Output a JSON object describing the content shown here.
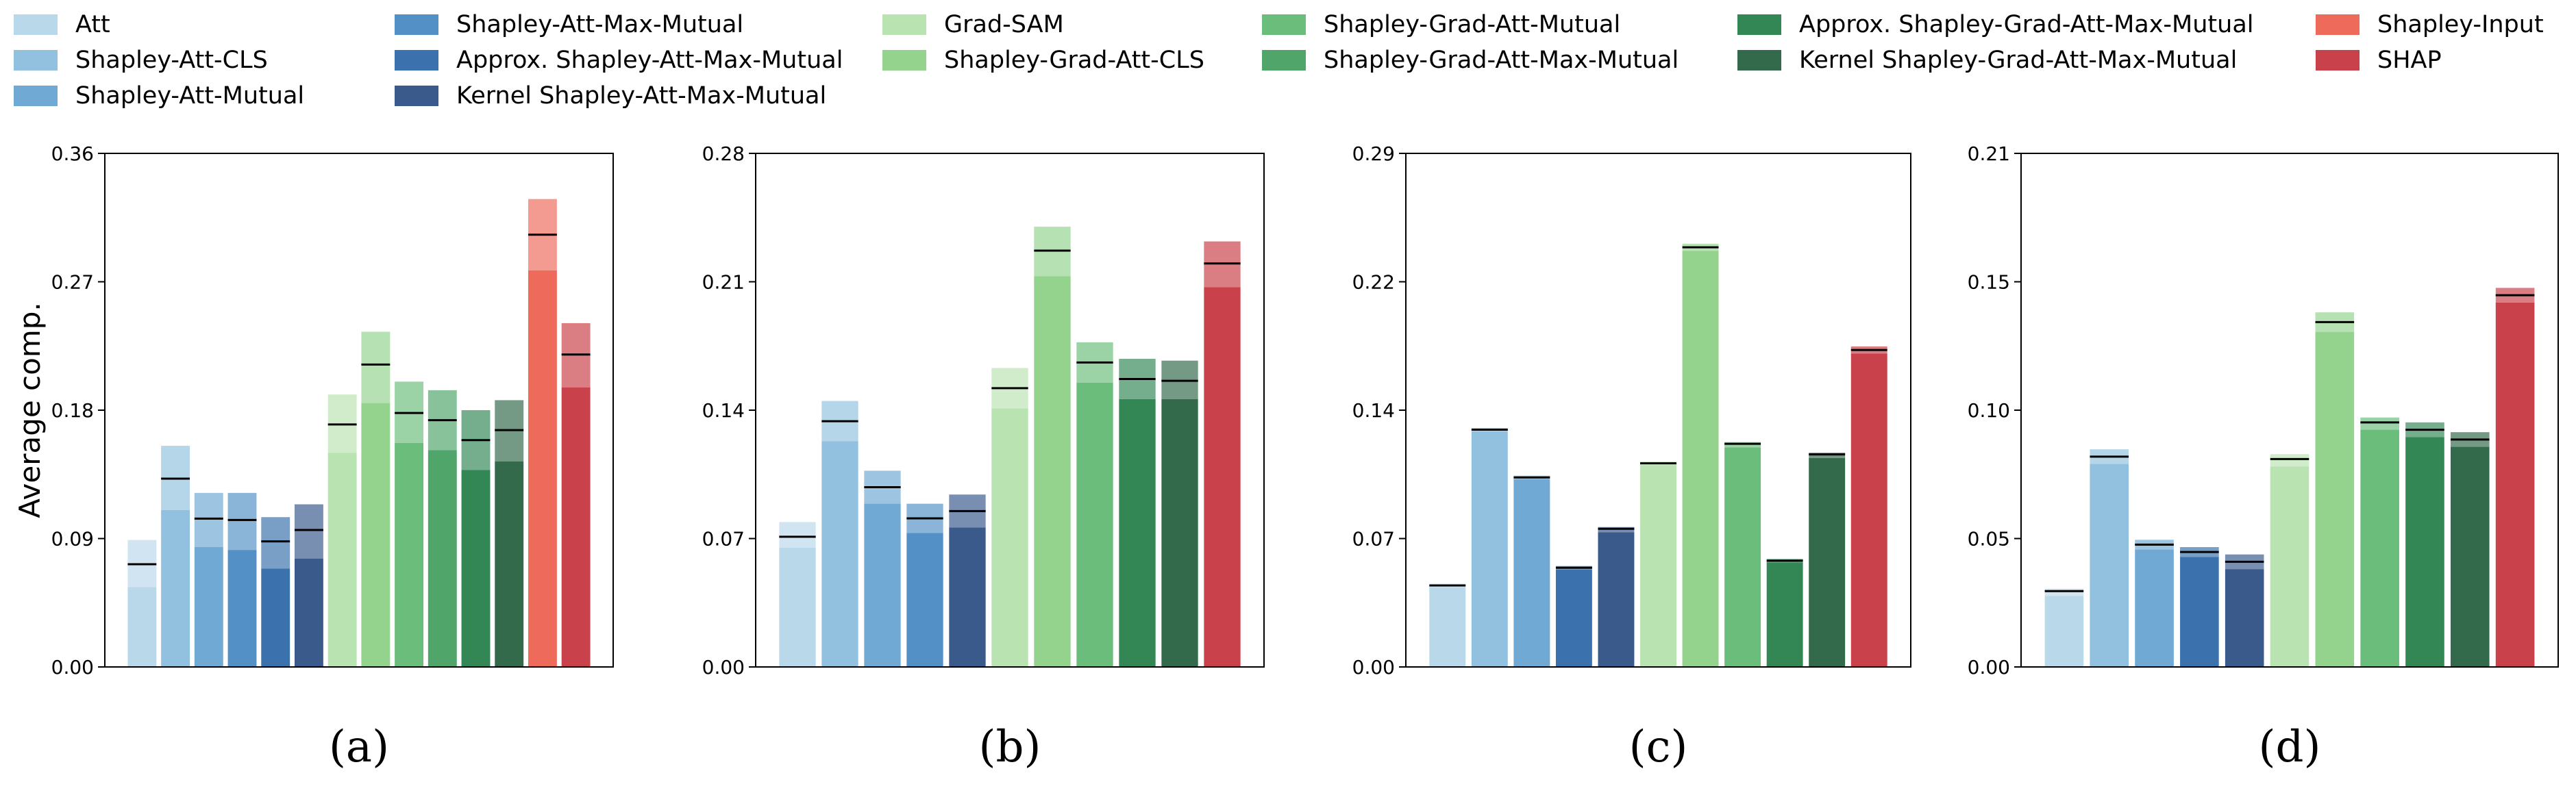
{
  "figure": {
    "ylabel": "Average comp."
  },
  "legend": [
    {
      "label": "Att",
      "color": "#b9d8ea"
    },
    {
      "label": "Shapley-Att-CLS",
      "color": "#92c1df"
    },
    {
      "label": "Shapley-Att-Mutual",
      "color": "#6fa9d4"
    },
    {
      "label": "Shapley-Att-Max-Mutual",
      "color": "#5390c6"
    },
    {
      "label": "Approx. Shapley-Att-Max-Mutual",
      "color": "#3b72ad"
    },
    {
      "label": "Kernel Shapley-Att-Max-Mutual",
      "color": "#3a5a8c"
    },
    {
      "label": "Grad-SAM",
      "color": "#b9e3b1"
    },
    {
      "label": "Shapley-Grad-Att-CLS",
      "color": "#94d38e"
    },
    {
      "label": "Shapley-Grad-Att-Mutual",
      "color": "#6bbd7c"
    },
    {
      "label": "Shapley-Grad-Att-Max-Mutual",
      "color": "#4fa56a"
    },
    {
      "label": "Approx. Shapley-Grad-Att-Max-Mutual",
      "color": "#338755"
    },
    {
      "label": "Kernel Shapley-Grad-Att-Max-Mutual",
      "color": "#326a4b"
    },
    {
      "label": "Shapley-Input",
      "color": "#ee6b5c"
    },
    {
      "label": "SHAP",
      "color": "#c9414a"
    }
  ],
  "chart_data": [
    {
      "type": "bar",
      "panel_label": "(a)",
      "ylim": [
        0,
        0.36
      ],
      "yticks": [
        "0.00",
        "0.09",
        "0.18",
        "0.27",
        "0.36"
      ],
      "series": [
        {
          "name": "Att",
          "low": 0.056,
          "mean": 0.072,
          "high": 0.089
        },
        {
          "name": "Shapley-Att-CLS",
          "low": 0.11,
          "mean": 0.132,
          "high": 0.155
        },
        {
          "name": "Shapley-Att-Mutual",
          "low": 0.084,
          "mean": 0.104,
          "high": 0.122
        },
        {
          "name": "Shapley-Att-Max-Mutual",
          "low": 0.082,
          "mean": 0.103,
          "high": 0.122
        },
        {
          "name": "Approx. Shapley-Att-Max-Mutual",
          "low": 0.069,
          "mean": 0.088,
          "high": 0.105
        },
        {
          "name": "Kernel Shapley-Att-Max-Mutual",
          "low": 0.076,
          "mean": 0.096,
          "high": 0.114
        },
        {
          "name": "Grad-SAM",
          "low": 0.15,
          "mean": 0.17,
          "high": 0.191
        },
        {
          "name": "Shapley-Grad-Att-CLS",
          "low": 0.185,
          "mean": 0.212,
          "high": 0.235
        },
        {
          "name": "Shapley-Grad-Att-Mutual",
          "low": 0.157,
          "mean": 0.178,
          "high": 0.2
        },
        {
          "name": "Shapley-Grad-Att-Max-Mutual",
          "low": 0.152,
          "mean": 0.173,
          "high": 0.194
        },
        {
          "name": "Approx. Shapley-Grad-Att-Max-Mutual",
          "low": 0.138,
          "mean": 0.159,
          "high": 0.18
        },
        {
          "name": "Kernel Shapley-Grad-Att-Max-Mutual",
          "low": 0.144,
          "mean": 0.166,
          "high": 0.187
        },
        {
          "name": "Shapley-Input",
          "low": 0.278,
          "mean": 0.303,
          "high": 0.328
        },
        {
          "name": "SHAP",
          "low": 0.196,
          "mean": 0.219,
          "high": 0.241
        }
      ]
    },
    {
      "type": "bar",
      "panel_label": "(b)",
      "ylim": [
        0,
        0.28
      ],
      "yticks": [
        "0.00",
        "0.07",
        "0.14",
        "0.21",
        "0.28"
      ],
      "series": [
        {
          "name": "Att",
          "low": 0.065,
          "mean": 0.071,
          "high": 0.079
        },
        {
          "name": "Shapley-Att-CLS",
          "low": 0.123,
          "mean": 0.134,
          "high": 0.145
        },
        {
          "name": "Shapley-Att-Mutual",
          "low": 0.089,
          "mean": 0.098,
          "high": 0.107
        },
        {
          "name": "Shapley-Att-Max-Mutual",
          "low": 0.073,
          "mean": 0.081,
          "high": 0.089
        },
        {
          "name": "Kernel Shapley-Att-Max-Mutual",
          "low": 0.076,
          "mean": 0.085,
          "high": 0.094
        },
        {
          "name": "Grad-SAM",
          "low": 0.141,
          "mean": 0.152,
          "high": 0.163
        },
        {
          "name": "Shapley-Grad-Att-CLS",
          "low": 0.213,
          "mean": 0.227,
          "high": 0.24
        },
        {
          "name": "Shapley-Grad-Att-Mutual",
          "low": 0.155,
          "mean": 0.166,
          "high": 0.177
        },
        {
          "name": "Approx. Shapley-Grad-Att-Max-Mutual",
          "low": 0.146,
          "mean": 0.157,
          "high": 0.168
        },
        {
          "name": "Kernel Shapley-Grad-Att-Max-Mutual",
          "low": 0.146,
          "mean": 0.156,
          "high": 0.167
        },
        {
          "name": "SHAP",
          "low": 0.207,
          "mean": 0.22,
          "high": 0.232
        }
      ]
    },
    {
      "type": "bar",
      "panel_label": "(c)",
      "ylim": [
        0,
        0.29
      ],
      "yticks": [
        "0.00",
        "0.07",
        "0.14",
        "0.22",
        "0.29"
      ],
      "series": [
        {
          "name": "Att",
          "low": 0.045,
          "mean": 0.046,
          "high": 0.047
        },
        {
          "name": "Shapley-Att-CLS",
          "low": 0.133,
          "mean": 0.134,
          "high": 0.135
        },
        {
          "name": "Shapley-Att-Mutual",
          "low": 0.106,
          "mean": 0.107,
          "high": 0.108
        },
        {
          "name": "Approx. Shapley-Att-Max-Mutual",
          "low": 0.055,
          "mean": 0.056,
          "high": 0.057
        },
        {
          "name": "Kernel Shapley-Att-Max-Mutual",
          "low": 0.076,
          "mean": 0.078,
          "high": 0.079
        },
        {
          "name": "Grad-SAM",
          "low": 0.114,
          "mean": 0.115,
          "high": 0.116
        },
        {
          "name": "Shapley-Grad-Att-CLS",
          "low": 0.235,
          "mean": 0.237,
          "high": 0.239
        },
        {
          "name": "Shapley-Grad-Att-Mutual",
          "low": 0.124,
          "mean": 0.126,
          "high": 0.127
        },
        {
          "name": "Approx. Shapley-Grad-Att-Max-Mutual",
          "low": 0.059,
          "mean": 0.06,
          "high": 0.061
        },
        {
          "name": "Kernel Shapley-Grad-Att-Max-Mutual",
          "low": 0.118,
          "mean": 0.12,
          "high": 0.121
        },
        {
          "name": "SHAP",
          "low": 0.177,
          "mean": 0.179,
          "high": 0.181
        }
      ]
    },
    {
      "type": "bar",
      "panel_label": "(d)",
      "ylim": [
        0,
        0.21
      ],
      "yticks": [
        "0.00",
        "0.05",
        "0.10",
        "0.15",
        "0.21"
      ],
      "series": [
        {
          "name": "Att",
          "low": 0.029,
          "mean": 0.031,
          "high": 0.032
        },
        {
          "name": "Shapley-Att-CLS",
          "low": 0.083,
          "mean": 0.086,
          "high": 0.089
        },
        {
          "name": "Shapley-Att-Mutual",
          "low": 0.048,
          "mean": 0.05,
          "high": 0.052
        },
        {
          "name": "Approx. Shapley-Att-Max-Mutual",
          "low": 0.045,
          "mean": 0.047,
          "high": 0.049
        },
        {
          "name": "Kernel Shapley-Att-Max-Mutual",
          "low": 0.04,
          "mean": 0.043,
          "high": 0.046
        },
        {
          "name": "Grad-SAM",
          "low": 0.082,
          "mean": 0.085,
          "high": 0.087
        },
        {
          "name": "Shapley-Grad-Att-CLS",
          "low": 0.137,
          "mean": 0.141,
          "high": 0.145
        },
        {
          "name": "Shapley-Grad-Att-Mutual",
          "low": 0.097,
          "mean": 0.1,
          "high": 0.102
        },
        {
          "name": "Approx. Shapley-Grad-Att-Max-Mutual",
          "low": 0.094,
          "mean": 0.097,
          "high": 0.1
        },
        {
          "name": "Kernel Shapley-Grad-Att-Max-Mutual",
          "low": 0.09,
          "mean": 0.093,
          "high": 0.096
        },
        {
          "name": "SHAP",
          "low": 0.149,
          "mean": 0.152,
          "high": 0.155
        }
      ]
    }
  ]
}
